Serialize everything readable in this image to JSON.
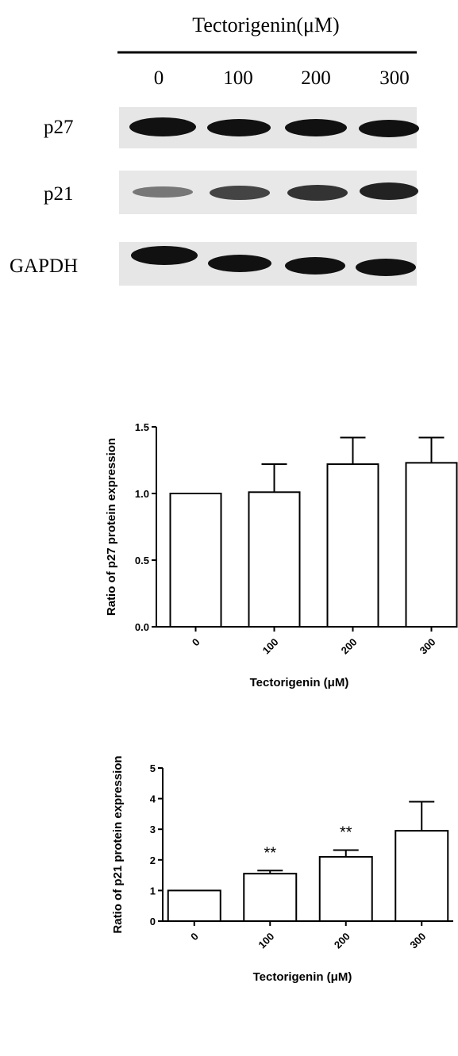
{
  "blot": {
    "title": "Tectorigenin(μM)",
    "lanes": [
      "0",
      "100",
      "200",
      "300"
    ],
    "rows": [
      "p27",
      "p21",
      "GAPDH"
    ]
  },
  "chart_data": [
    {
      "type": "bar",
      "y_label": "Ratio of p27 protein expression",
      "x_label": "Tectorigenin (μM)",
      "categories": [
        "0",
        "100",
        "200",
        "300"
      ],
      "values": [
        1.0,
        1.01,
        1.22,
        1.23
      ],
      "errors": [
        0,
        0.21,
        0.2,
        0.19
      ],
      "color": "#ffffff",
      "ylim": [
        0,
        1.5
      ],
      "yticks": [
        {
          "value": 0,
          "label": "0.0"
        },
        0.5,
        {
          "value": 1,
          "label": "1.0"
        },
        1.5
      ]
    },
    {
      "type": "bar",
      "y_label": "Ratio of p21 protein expression",
      "x_label": "Tectorigenin (μM)",
      "categories": [
        "0",
        "100",
        "200",
        "300"
      ],
      "values": [
        1.0,
        1.55,
        2.1,
        2.95
      ],
      "errors": [
        0,
        0.1,
        0.22,
        0.95
      ],
      "value_annotations": [
        null,
        "**",
        "**",
        null
      ],
      "color": "#ffffff",
      "ylim": [
        0,
        5
      ],
      "yticks": [
        0,
        1,
        2,
        3,
        4,
        5
      ]
    }
  ]
}
